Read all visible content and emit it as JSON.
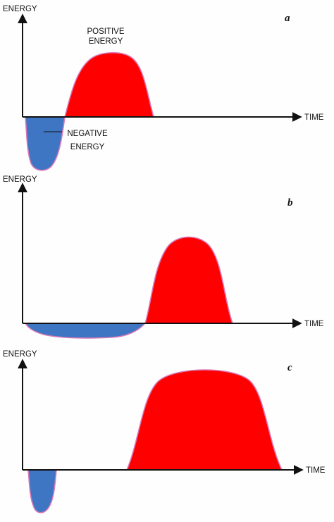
{
  "colors": {
    "positive": "#ff0000",
    "negative": "#3f76c4",
    "outline": "#d97ab8",
    "axis": "#111111"
  },
  "panels": [
    {
      "letter": "a",
      "y_axis_label": "ENERGY",
      "x_axis_label": "TIME",
      "positive_label_line1": "POSITIVE",
      "positive_label_line2": "ENERGY",
      "negative_label_line1": "NEGATIVE",
      "negative_label_line2": "ENERGY"
    },
    {
      "letter": "b",
      "y_axis_label": "ENERGY",
      "x_axis_label": "TIME"
    },
    {
      "letter": "c",
      "y_axis_label": "ENERGY",
      "x_axis_label": "TIME"
    }
  ]
}
